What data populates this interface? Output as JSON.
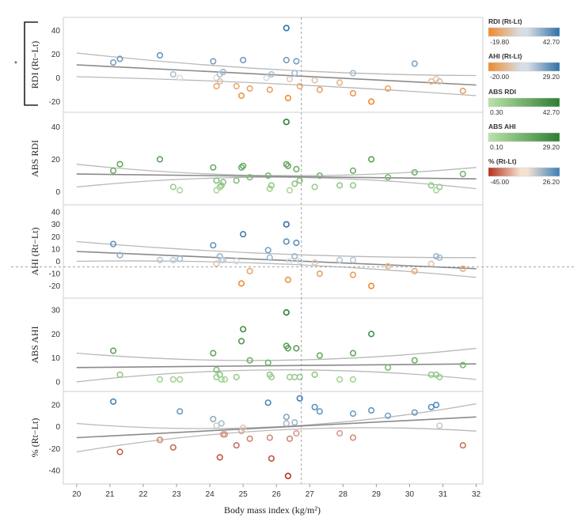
{
  "chart_data": {
    "type": "scatter",
    "xlabel": "Body mass index (kg/m²)",
    "xlim": [
      19.6,
      32.2
    ],
    "x_ticks": [
      20,
      21,
      22,
      23,
      24,
      25,
      26,
      27,
      28,
      29,
      30,
      31,
      32
    ],
    "vline_x": 26.75,
    "significance_marker": "*",
    "legends": [
      {
        "title": "RDI (Rt-Lt)",
        "min": "-19.80",
        "max": "42.70",
        "low": "#f08a2c",
        "mid": "#d8dde3",
        "high": "#2f6fa8"
      },
      {
        "title": "AHI (Rt-Lt)",
        "min": "-20.00",
        "max": "29.20",
        "low": "#f08a2c",
        "mid": "#d8dde3",
        "high": "#2f6fa8"
      },
      {
        "title": "ABS RDI",
        "min": "0.30",
        "max": "42.70",
        "low": "#b9e4a8",
        "high": "#2e7d32"
      },
      {
        "title": "ABS AHI",
        "min": "0.10",
        "max": "29.20",
        "low": "#b9e4a8",
        "high": "#2e7d32"
      },
      {
        "title": "% (Rt-Lt)",
        "min": "-45.00",
        "max": "26.20",
        "low": "#b5301a",
        "mid": "#f3e2d0",
        "high": "#3a7fb8"
      }
    ],
    "panels": [
      {
        "ylabel": "RDI (Rt−Lt)",
        "ylim": [
          -25,
          47
        ],
        "ticks": [
          -20,
          0,
          20,
          40
        ],
        "colormap": "diverging_rdi",
        "cmin": -19.8,
        "cmax": 42.7,
        "fit": [
          [
            20,
            11
          ],
          [
            32,
            -6
          ]
        ],
        "ci_upper": [
          [
            20,
            21
          ],
          [
            26,
            7
          ],
          [
            32,
            2
          ]
        ],
        "ci_lower": [
          [
            20,
            1
          ],
          [
            26,
            -5
          ],
          [
            32,
            -15
          ]
        ],
        "points": [
          [
            21.1,
            13
          ],
          [
            21.3,
            16
          ],
          [
            22.5,
            19
          ],
          [
            22.9,
            3
          ],
          [
            23.1,
            0
          ],
          [
            24.1,
            14
          ],
          [
            24.2,
            0
          ],
          [
            24.2,
            -7
          ],
          [
            24.3,
            3
          ],
          [
            24.3,
            -3
          ],
          [
            24.4,
            5
          ],
          [
            24.8,
            -7
          ],
          [
            24.95,
            -15
          ],
          [
            25.0,
            15
          ],
          [
            25.2,
            -9
          ],
          [
            25.7,
            0
          ],
          [
            25.8,
            -10
          ],
          [
            25.85,
            3
          ],
          [
            26.3,
            42
          ],
          [
            26.3,
            15
          ],
          [
            26.35,
            -17
          ],
          [
            26.4,
            -1
          ],
          [
            26.55,
            4
          ],
          [
            26.6,
            14
          ],
          [
            26.7,
            -7
          ],
          [
            27.15,
            -2
          ],
          [
            27.3,
            -10
          ],
          [
            27.9,
            -4
          ],
          [
            28.3,
            4
          ],
          [
            28.3,
            -13
          ],
          [
            28.85,
            -20
          ],
          [
            29.35,
            -9
          ],
          [
            30.15,
            12
          ],
          [
            30.65,
            -3
          ],
          [
            30.8,
            -1
          ],
          [
            30.9,
            -3
          ],
          [
            31.6,
            -11
          ]
        ]
      },
      {
        "ylabel": "ABS RDI",
        "ylim": [
          -5,
          46
        ],
        "ticks": [
          0,
          20,
          40
        ],
        "colormap": "green_rdi",
        "cmin": 0.3,
        "cmax": 42.7,
        "fit": [
          [
            20,
            11
          ],
          [
            32,
            8
          ]
        ],
        "ci_upper": [
          [
            20,
            17
          ],
          [
            26,
            10
          ],
          [
            32,
            15
          ]
        ],
        "ci_lower": [
          [
            20,
            3
          ],
          [
            26,
            9
          ],
          [
            32,
            2
          ]
        ],
        "points": [
          [
            21.1,
            13
          ],
          [
            21.3,
            17
          ],
          [
            22.5,
            20
          ],
          [
            22.9,
            3
          ],
          [
            23.1,
            1
          ],
          [
            24.1,
            15
          ],
          [
            24.2,
            7
          ],
          [
            24.2,
            1
          ],
          [
            24.3,
            3
          ],
          [
            24.35,
            4
          ],
          [
            24.4,
            6
          ],
          [
            24.8,
            7
          ],
          [
            24.95,
            15
          ],
          [
            25.0,
            16
          ],
          [
            25.2,
            9
          ],
          [
            25.75,
            10
          ],
          [
            25.8,
            2
          ],
          [
            25.85,
            4
          ],
          [
            26.3,
            43
          ],
          [
            26.3,
            17
          ],
          [
            26.35,
            16
          ],
          [
            26.4,
            1
          ],
          [
            26.55,
            5
          ],
          [
            26.6,
            14
          ],
          [
            26.7,
            7
          ],
          [
            27.15,
            3
          ],
          [
            27.3,
            10
          ],
          [
            27.9,
            4
          ],
          [
            28.3,
            13
          ],
          [
            28.3,
            4
          ],
          [
            28.85,
            20
          ],
          [
            29.35,
            9
          ],
          [
            30.15,
            12
          ],
          [
            30.65,
            4
          ],
          [
            30.8,
            1
          ],
          [
            30.9,
            3
          ],
          [
            31.6,
            11
          ]
        ]
      },
      {
        "ylabel": "AHI (Rt−Lt)",
        "ylim": [
          -26,
          42
        ],
        "ticks": [
          -20,
          -10,
          0,
          10,
          20,
          30,
          40
        ],
        "colormap": "diverging_ahi",
        "cmin": -20,
        "cmax": 29.2,
        "hline": -4.5,
        "fit": [
          [
            20,
            8
          ],
          [
            32,
            -6
          ]
        ],
        "ci_upper": [
          [
            20,
            16
          ],
          [
            26,
            6
          ],
          [
            32,
            3
          ]
        ],
        "ci_lower": [
          [
            20,
            0
          ],
          [
            26,
            -2
          ],
          [
            32,
            -13
          ]
        ],
        "points": [
          [
            21.1,
            14
          ],
          [
            21.3,
            5
          ],
          [
            22.5,
            1
          ],
          [
            22.9,
            1
          ],
          [
            23.1,
            2
          ],
          [
            24.1,
            13
          ],
          [
            24.2,
            -2
          ],
          [
            24.3,
            4
          ],
          [
            24.35,
            1
          ],
          [
            24.4,
            1
          ],
          [
            24.8,
            0
          ],
          [
            24.95,
            -18
          ],
          [
            25.0,
            22
          ],
          [
            25.2,
            -8
          ],
          [
            25.75,
            9
          ],
          [
            25.8,
            3
          ],
          [
            26.3,
            30
          ],
          [
            26.3,
            16
          ],
          [
            26.35,
            -15
          ],
          [
            26.4,
            0
          ],
          [
            26.55,
            4
          ],
          [
            26.6,
            15
          ],
          [
            26.7,
            0
          ],
          [
            27.15,
            -1
          ],
          [
            27.3,
            -10
          ],
          [
            27.9,
            1
          ],
          [
            28.3,
            -11
          ],
          [
            28.3,
            1
          ],
          [
            28.85,
            -20
          ],
          [
            29.35,
            -4
          ],
          [
            30.15,
            -8
          ],
          [
            30.65,
            -2
          ],
          [
            30.8,
            4
          ],
          [
            30.9,
            3
          ],
          [
            31.6,
            -6
          ]
        ]
      },
      {
        "ylabel": "ABS AHI",
        "ylim": [
          -2,
          33
        ],
        "ticks": [
          0,
          10,
          20,
          30
        ],
        "colormap": "green_ahi",
        "cmin": 0.1,
        "cmax": 29.2,
        "fit": [
          [
            20,
            6
          ],
          [
            32,
            7.5
          ]
        ],
        "ci_upper": [
          [
            20,
            12
          ],
          [
            26,
            9
          ],
          [
            32,
            14
          ]
        ],
        "ci_lower": [
          [
            20,
            0
          ],
          [
            26,
            5
          ],
          [
            32,
            1
          ]
        ],
        "points": [
          [
            21.1,
            13
          ],
          [
            21.3,
            3
          ],
          [
            22.5,
            1
          ],
          [
            22.9,
            1
          ],
          [
            23.1,
            1
          ],
          [
            24.1,
            12
          ],
          [
            24.2,
            5
          ],
          [
            24.2,
            2
          ],
          [
            24.3,
            3
          ],
          [
            24.35,
            1
          ],
          [
            24.45,
            1
          ],
          [
            24.8,
            2
          ],
          [
            24.95,
            17
          ],
          [
            25.0,
            22
          ],
          [
            25.2,
            9
          ],
          [
            25.75,
            8
          ],
          [
            25.8,
            3
          ],
          [
            25.85,
            2
          ],
          [
            26.3,
            29
          ],
          [
            26.3,
            15
          ],
          [
            26.35,
            14
          ],
          [
            26.4,
            2
          ],
          [
            26.55,
            2
          ],
          [
            26.6,
            14
          ],
          [
            26.7,
            2
          ],
          [
            27.15,
            3
          ],
          [
            27.3,
            11
          ],
          [
            27.9,
            1
          ],
          [
            28.3,
            12
          ],
          [
            28.3,
            1
          ],
          [
            28.85,
            20
          ],
          [
            29.35,
            6
          ],
          [
            30.15,
            9
          ],
          [
            30.65,
            3
          ],
          [
            30.8,
            3
          ],
          [
            30.9,
            2
          ],
          [
            31.6,
            7
          ]
        ]
      },
      {
        "ylabel": "% (Rt−Lt)",
        "ylim": [
          -48,
          28
        ],
        "ticks": [
          -40,
          -20,
          0,
          20
        ],
        "colormap": "diverging_pct",
        "cmin": -45,
        "cmax": 26.2,
        "fit": [
          [
            20,
            -10
          ],
          [
            32,
            9
          ]
        ],
        "ci_upper": [
          [
            20,
            3
          ],
          [
            26,
            0
          ],
          [
            32,
            21
          ]
        ],
        "ci_lower": [
          [
            20,
            -23
          ],
          [
            26,
            -3
          ],
          [
            32,
            -4
          ]
        ],
        "points": [
          [
            21.1,
            23
          ],
          [
            21.3,
            -23
          ],
          [
            22.5,
            -12
          ],
          [
            22.9,
            -19
          ],
          [
            23.1,
            14
          ],
          [
            24.1,
            7
          ],
          [
            24.2,
            1
          ],
          [
            24.3,
            -28
          ],
          [
            24.35,
            3
          ],
          [
            24.4,
            -7
          ],
          [
            24.45,
            -7
          ],
          [
            24.8,
            -17
          ],
          [
            24.95,
            -4
          ],
          [
            25.0,
            -1
          ],
          [
            25.2,
            -11
          ],
          [
            25.75,
            22
          ],
          [
            25.8,
            -10
          ],
          [
            25.85,
            -29
          ],
          [
            26.3,
            9
          ],
          [
            26.3,
            3
          ],
          [
            26.35,
            -45
          ],
          [
            26.4,
            -11
          ],
          [
            26.55,
            4
          ],
          [
            26.6,
            -6
          ],
          [
            26.7,
            26
          ],
          [
            27.15,
            18
          ],
          [
            27.3,
            14
          ],
          [
            27.9,
            -6
          ],
          [
            28.3,
            12
          ],
          [
            28.3,
            -10
          ],
          [
            28.85,
            15
          ],
          [
            29.35,
            10
          ],
          [
            30.15,
            13
          ],
          [
            30.65,
            18
          ],
          [
            30.8,
            20
          ],
          [
            30.9,
            1
          ],
          [
            31.6,
            -17
          ]
        ]
      }
    ]
  }
}
